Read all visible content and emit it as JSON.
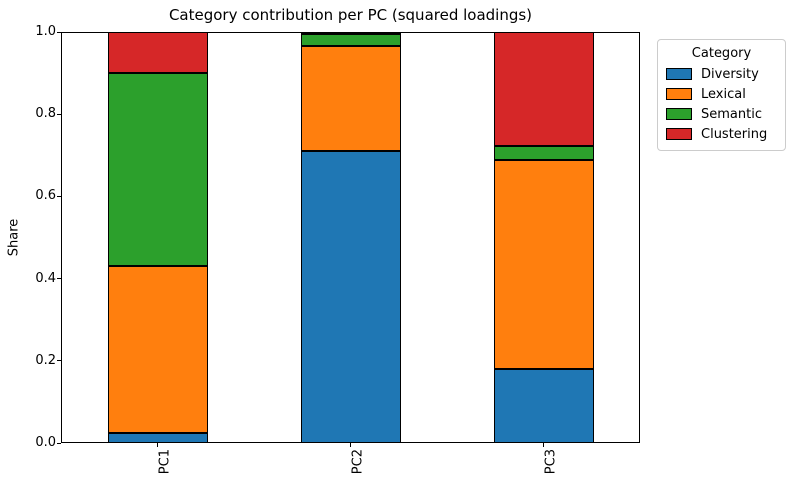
{
  "figure": {
    "title": "Category contribution per PC (squared loadings)"
  },
  "axes": {
    "ylabel": "Share",
    "y_ticks": [
      "0.0",
      "0.2",
      "0.4",
      "0.6",
      "0.8",
      "1.0"
    ]
  },
  "legend": {
    "title": "Category",
    "entries": [
      {
        "label": "Diversity",
        "color": "#1f77b4"
      },
      {
        "label": "Lexical",
        "color": "#ff7f0e"
      },
      {
        "label": "Semantic",
        "color": "#2ca02c"
      },
      {
        "label": "Clustering",
        "color": "#d62728"
      }
    ]
  },
  "chart_data": {
    "type": "bar",
    "stacked": true,
    "title": "Category contribution per PC (squared loadings)",
    "xlabel": "",
    "ylabel": "Share",
    "ylim": [
      0.0,
      1.0
    ],
    "grid": false,
    "categories": [
      "PC1",
      "PC2",
      "PC3"
    ],
    "series": [
      {
        "name": "Diversity",
        "color": "#1f77b4",
        "values": [
          0.025,
          0.71,
          0.18
        ]
      },
      {
        "name": "Lexical",
        "color": "#ff7f0e",
        "values": [
          0.405,
          0.255,
          0.508
        ]
      },
      {
        "name": "Semantic",
        "color": "#2ca02c",
        "values": [
          0.47,
          0.03,
          0.034
        ]
      },
      {
        "name": "Clustering",
        "color": "#d62728",
        "values": [
          0.1,
          0.005,
          0.278
        ]
      }
    ],
    "bar_edge_color": "#000000",
    "legend_title": "Category",
    "legend_position": "outside upper right"
  }
}
